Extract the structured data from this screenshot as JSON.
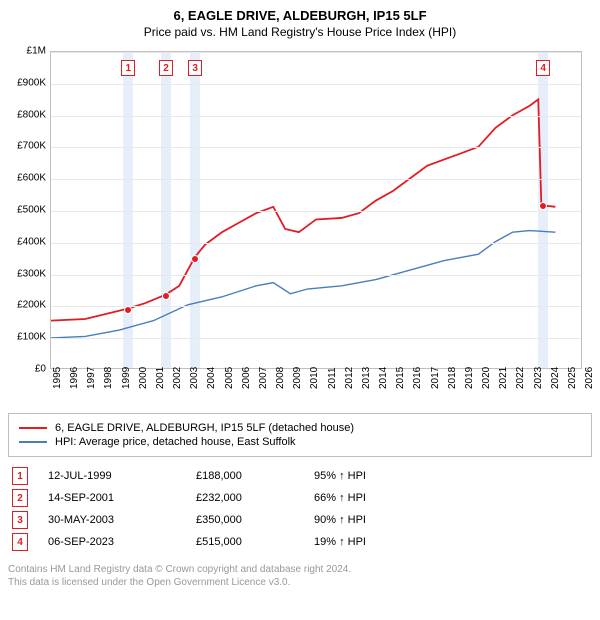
{
  "title": "6, EAGLE DRIVE, ALDEBURGH, IP15 5LF",
  "subtitle": "Price paid vs. HM Land Registry's House Price Index (HPI)",
  "chart": {
    "type": "line",
    "background_color": "#ffffff",
    "grid_color": "#e8e8e8",
    "axis_color": "#c0c0c0",
    "band_color": "#e6eef9",
    "xlim": [
      1995,
      2026
    ],
    "ylim": [
      0,
      1000000
    ],
    "ytick_step": 100000,
    "ytick_labels": [
      "£0",
      "£100K",
      "£200K",
      "£300K",
      "£400K",
      "£500K",
      "£600K",
      "£700K",
      "£800K",
      "£900K",
      "£1M"
    ],
    "xticks": [
      1995,
      1996,
      1997,
      1998,
      1999,
      2000,
      2001,
      2002,
      2003,
      2004,
      2005,
      2006,
      2007,
      2008,
      2009,
      2010,
      2011,
      2012,
      2013,
      2014,
      2015,
      2016,
      2017,
      2018,
      2019,
      2020,
      2021,
      2022,
      2023,
      2024,
      2025,
      2026
    ],
    "label_fontsize": 10,
    "line_width_property": 1.8,
    "line_width_hpi": 1.4,
    "series": {
      "property": {
        "color": "#e31b23",
        "points": [
          [
            1995,
            150000
          ],
          [
            1997,
            155000
          ],
          [
            1999.5,
            188000
          ],
          [
            2000.5,
            205000
          ],
          [
            2001.7,
            232000
          ],
          [
            2002.5,
            260000
          ],
          [
            2003.4,
            350000
          ],
          [
            2004,
            390000
          ],
          [
            2005,
            430000
          ],
          [
            2006,
            460000
          ],
          [
            2007,
            490000
          ],
          [
            2008,
            510000
          ],
          [
            2008.7,
            440000
          ],
          [
            2009.5,
            430000
          ],
          [
            2010.5,
            470000
          ],
          [
            2012,
            475000
          ],
          [
            2013,
            490000
          ],
          [
            2014,
            530000
          ],
          [
            2015,
            560000
          ],
          [
            2016,
            600000
          ],
          [
            2017,
            640000
          ],
          [
            2018,
            660000
          ],
          [
            2019,
            680000
          ],
          [
            2020,
            700000
          ],
          [
            2021,
            760000
          ],
          [
            2022,
            800000
          ],
          [
            2023,
            830000
          ],
          [
            2023.5,
            850000
          ],
          [
            2023.68,
            515000
          ],
          [
            2024.5,
            510000
          ]
        ]
      },
      "hpi": {
        "color": "#4a7ebb",
        "points": [
          [
            1995,
            95000
          ],
          [
            1997,
            100000
          ],
          [
            1999,
            120000
          ],
          [
            2001,
            150000
          ],
          [
            2003,
            200000
          ],
          [
            2005,
            225000
          ],
          [
            2007,
            260000
          ],
          [
            2008,
            270000
          ],
          [
            2009,
            235000
          ],
          [
            2010,
            250000
          ],
          [
            2012,
            260000
          ],
          [
            2014,
            280000
          ],
          [
            2016,
            310000
          ],
          [
            2018,
            340000
          ],
          [
            2020,
            360000
          ],
          [
            2021,
            400000
          ],
          [
            2022,
            430000
          ],
          [
            2023,
            435000
          ],
          [
            2024.5,
            430000
          ]
        ]
      }
    },
    "sale_markers": [
      {
        "n": "1",
        "x": 1999.5,
        "y": 188000,
        "label_top": true
      },
      {
        "n": "2",
        "x": 2001.7,
        "y": 232000,
        "label_top": true
      },
      {
        "n": "3",
        "x": 2003.4,
        "y": 350000,
        "label_top": true
      },
      {
        "n": "4",
        "x": 2023.68,
        "y": 515000,
        "label_top": true
      }
    ],
    "marker_color": "#e31b23",
    "dot_color": "#e31b23"
  },
  "legend": {
    "items": [
      {
        "color": "#e31b23",
        "label": "6, EAGLE DRIVE, ALDEBURGH, IP15 5LF (detached house)"
      },
      {
        "color": "#4a7ebb",
        "label": "HPI: Average price, detached house, East Suffolk"
      }
    ]
  },
  "sales": [
    {
      "n": "1",
      "date": "12-JUL-1999",
      "price": "£188,000",
      "hpi": "95% ↑ HPI"
    },
    {
      "n": "2",
      "date": "14-SEP-2001",
      "price": "£232,000",
      "hpi": "66% ↑ HPI"
    },
    {
      "n": "3",
      "date": "30-MAY-2003",
      "price": "£350,000",
      "hpi": "90% ↑ HPI"
    },
    {
      "n": "4",
      "date": "06-SEP-2023",
      "price": "£515,000",
      "hpi": "19% ↑ HPI"
    }
  ],
  "attribution": {
    "line1": "Contains HM Land Registry data © Crown copyright and database right 2024.",
    "line2": "This data is licensed under the Open Government Licence v3.0."
  }
}
